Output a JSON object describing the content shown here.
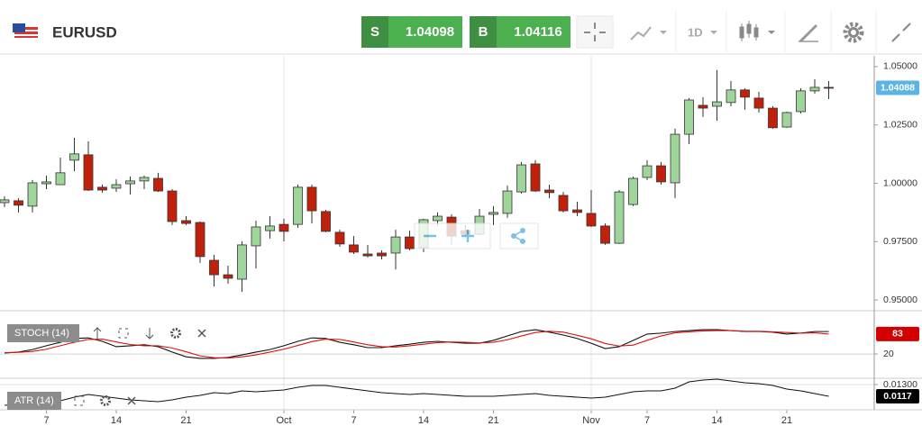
{
  "header": {
    "symbol": "EURUSD",
    "sell_label": "S",
    "sell_price": "1.04098",
    "buy_label": "B",
    "buy_price": "1.04116",
    "timeframe": "1D"
  },
  "chart_data": [
    {
      "type": "candlestick",
      "categories": [
        null,
        null,
        null,
        "7",
        null,
        null,
        null,
        null,
        "14",
        null,
        null,
        null,
        null,
        "21",
        null,
        null,
        null,
        null,
        null,
        null,
        "Oct",
        null,
        null,
        null,
        null,
        "7",
        null,
        null,
        null,
        null,
        "14",
        null,
        null,
        null,
        null,
        "21",
        null,
        null,
        null,
        null,
        null,
        null,
        "Nov",
        null,
        null,
        null,
        "7",
        null,
        null,
        null,
        null,
        "14",
        null,
        null,
        null,
        null,
        "21",
        null,
        null,
        null
      ],
      "open": [
        0.9917,
        0.9925,
        0.9902,
        0.9998,
        0.9994,
        1.0099,
        1.0122,
        0.9983,
        0.9979,
        0.9998,
        1.001,
        1.0021,
        0.9967,
        0.984,
        0.9832,
        0.967,
        0.9608,
        0.9589,
        0.9732,
        0.9797,
        0.9824,
        0.9824,
        0.9983,
        0.9879,
        0.979,
        0.9736,
        0.9697,
        0.9701,
        0.9701,
        0.977,
        0.9724,
        0.984,
        0.9855,
        0.9797,
        0.9782,
        0.9867,
        0.9871,
        0.9963,
        1.0083,
        0.9971,
        0.9948,
        0.9886,
        0.9871,
        0.9817,
        0.9743,
        0.9909,
        1.0025,
        1.0075,
        1.0002,
        1.021,
        1.0334,
        1.033,
        1.0346,
        1.04,
        1.0365,
        1.0322,
        1.0241,
        1.0307,
        1.0396,
        1.0411
      ],
      "high": [
        0.9944,
        0.9936,
        1.0014,
        1.0033,
        1.011,
        1.0195,
        1.018,
        0.9994,
        1.0017,
        1.0029,
        1.0033,
        1.0045,
        0.9975,
        0.9859,
        0.9836,
        0.9693,
        0.9647,
        0.9751,
        0.984,
        0.9859,
        0.9848,
        0.9994,
        0.9994,
        0.9886,
        0.9801,
        0.9774,
        0.9736,
        0.9713,
        0.9801,
        0.9797,
        0.9848,
        0.9875,
        0.9867,
        0.9821,
        0.989,
        0.9902,
        0.999,
        1.0091,
        1.0099,
        0.9994,
        0.9963,
        0.9921,
        0.9971,
        0.9828,
        0.9971,
        1.0029,
        1.0099,
        1.0091,
        1.0234,
        1.0365,
        1.0369,
        1.0485,
        1.0438,
        1.0407,
        1.0392,
        1.033,
        1.0307,
        1.0407,
        1.0446,
        1.0438
      ],
      "low": [
        0.9898,
        0.9875,
        0.9875,
        0.9975,
        0.9994,
        1.0052,
        0.9967,
        0.996,
        0.9963,
        0.9952,
        0.9975,
        0.9963,
        0.9821,
        0.9821,
        0.9659,
        0.9558,
        0.957,
        0.9535,
        0.9635,
        0.9763,
        0.9751,
        0.9809,
        0.9828,
        0.979,
        0.9728,
        0.9697,
        0.9682,
        0.9674,
        0.9631,
        0.9713,
        0.9705,
        0.9817,
        0.9736,
        0.9774,
        0.9778,
        0.9821,
        0.9852,
        0.9956,
        0.9963,
        0.9936,
        0.9875,
        0.9859,
        0.9813,
        0.9736,
        0.974,
        0.9902,
        1.0014,
        0.9994,
        0.9936,
        1.0168,
        1.0284,
        1.0268,
        1.033,
        1.0315,
        1.0303,
        1.0234,
        1.0238,
        1.0299,
        1.0384,
        1.0361
      ],
      "close": [
        0.9929,
        0.9906,
        1.0002,
        1.0006,
        1.0045,
        1.0126,
        0.9971,
        0.9971,
        0.9994,
        1.001,
        1.0025,
        0.9967,
        0.9836,
        0.9828,
        0.9686,
        0.9608,
        0.9593,
        0.9736,
        0.9813,
        0.9817,
        0.9794,
        0.9983,
        0.9882,
        0.9794,
        0.974,
        0.9705,
        0.9689,
        0.9689,
        0.977,
        0.972,
        0.9844,
        0.9859,
        0.9774,
        0.9782,
        0.9859,
        0.9875,
        0.9967,
        1.0079,
        0.9967,
        0.996,
        0.9882,
        0.9875,
        0.9817,
        0.9743,
        0.9963,
        1.0021,
        1.0075,
        1.0006,
        1.021,
        1.0357,
        1.0322,
        1.0349,
        1.04,
        1.0369,
        1.0322,
        1.0238,
        1.0303,
        1.0396,
        1.0411,
        1.0409
      ],
      "up_color": "#9fd49a",
      "down_color": "#c1200b",
      "ylim": [
        0.9454,
        1.0546
      ],
      "yticks": [
        {
          "value": 1.05,
          "label": "1.05000"
        },
        {
          "value": 1.025,
          "label": "1.02500"
        },
        {
          "value": 1.0,
          "label": "1.00000"
        },
        {
          "value": 0.975,
          "label": "0.97500"
        },
        {
          "value": 0.95,
          "label": "0.95000"
        }
      ],
      "last_value": 1.04088,
      "last_color": "#5bb5e0"
    },
    {
      "type": "line",
      "title": "STOCH (14)",
      "series": [
        {
          "color": "#111111",
          "values": [
            23,
            26,
            34,
            46,
            57,
            69,
            71,
            60,
            43,
            46,
            49,
            43,
            26,
            11,
            6,
            6,
            9,
            17,
            26,
            34,
            46,
            60,
            71,
            69,
            57,
            49,
            40,
            40,
            46,
            51,
            57,
            60,
            57,
            54,
            54,
            63,
            77,
            91,
            97,
            89,
            80,
            69,
            54,
            37,
            43,
            63,
            83,
            86,
            91,
            94,
            97,
            97,
            94,
            91,
            91,
            89,
            83,
            86,
            91,
            91
          ]
        },
        {
          "color": "#e01010",
          "values": [
            24,
            25,
            28,
            35,
            46,
            57,
            66,
            67,
            58,
            50,
            46,
            46,
            39,
            27,
            14,
            8,
            7,
            11,
            17,
            26,
            35,
            47,
            59,
            67,
            66,
            58,
            49,
            43,
            42,
            46,
            51,
            56,
            58,
            57,
            55,
            57,
            65,
            77,
            88,
            92,
            89,
            79,
            68,
            53,
            45,
            48,
            63,
            77,
            87,
            90,
            93,
            94,
            94,
            92,
            92,
            90,
            88,
            86,
            87,
            83
          ]
        }
      ],
      "ylim": [
        -57,
        157
      ],
      "yticks": [
        20
      ],
      "last_value": 83,
      "last_color": "#d40000"
    },
    {
      "type": "line",
      "title": "ATR (14)",
      "series": [
        {
          "color": "#111111",
          "values": [
            0.0107,
            0.0108,
            0.011,
            0.0111,
            0.0112,
            0.0116,
            0.0119,
            0.0117,
            0.0115,
            0.0113,
            0.0112,
            0.0111,
            0.0113,
            0.0116,
            0.0118,
            0.0121,
            0.012,
            0.0123,
            0.0122,
            0.0123,
            0.0124,
            0.0127,
            0.0129,
            0.0129,
            0.0127,
            0.0125,
            0.0123,
            0.0121,
            0.012,
            0.0119,
            0.012,
            0.0119,
            0.0118,
            0.0117,
            0.0117,
            0.0117,
            0.0118,
            0.0119,
            0.012,
            0.0118,
            0.0117,
            0.0116,
            0.0115,
            0.0116,
            0.0119,
            0.0122,
            0.0123,
            0.0123,
            0.0126,
            0.0133,
            0.0135,
            0.0136,
            0.0134,
            0.0132,
            0.0131,
            0.0129,
            0.0125,
            0.0123,
            0.012,
            0.0117
          ]
        }
      ],
      "ylim": [
        0.0102,
        0.0137
      ],
      "yticks": [
        {
          "value": 0.013,
          "label": "0.01300"
        }
      ],
      "last_value": 0.0117,
      "last_color": "#000000"
    }
  ]
}
